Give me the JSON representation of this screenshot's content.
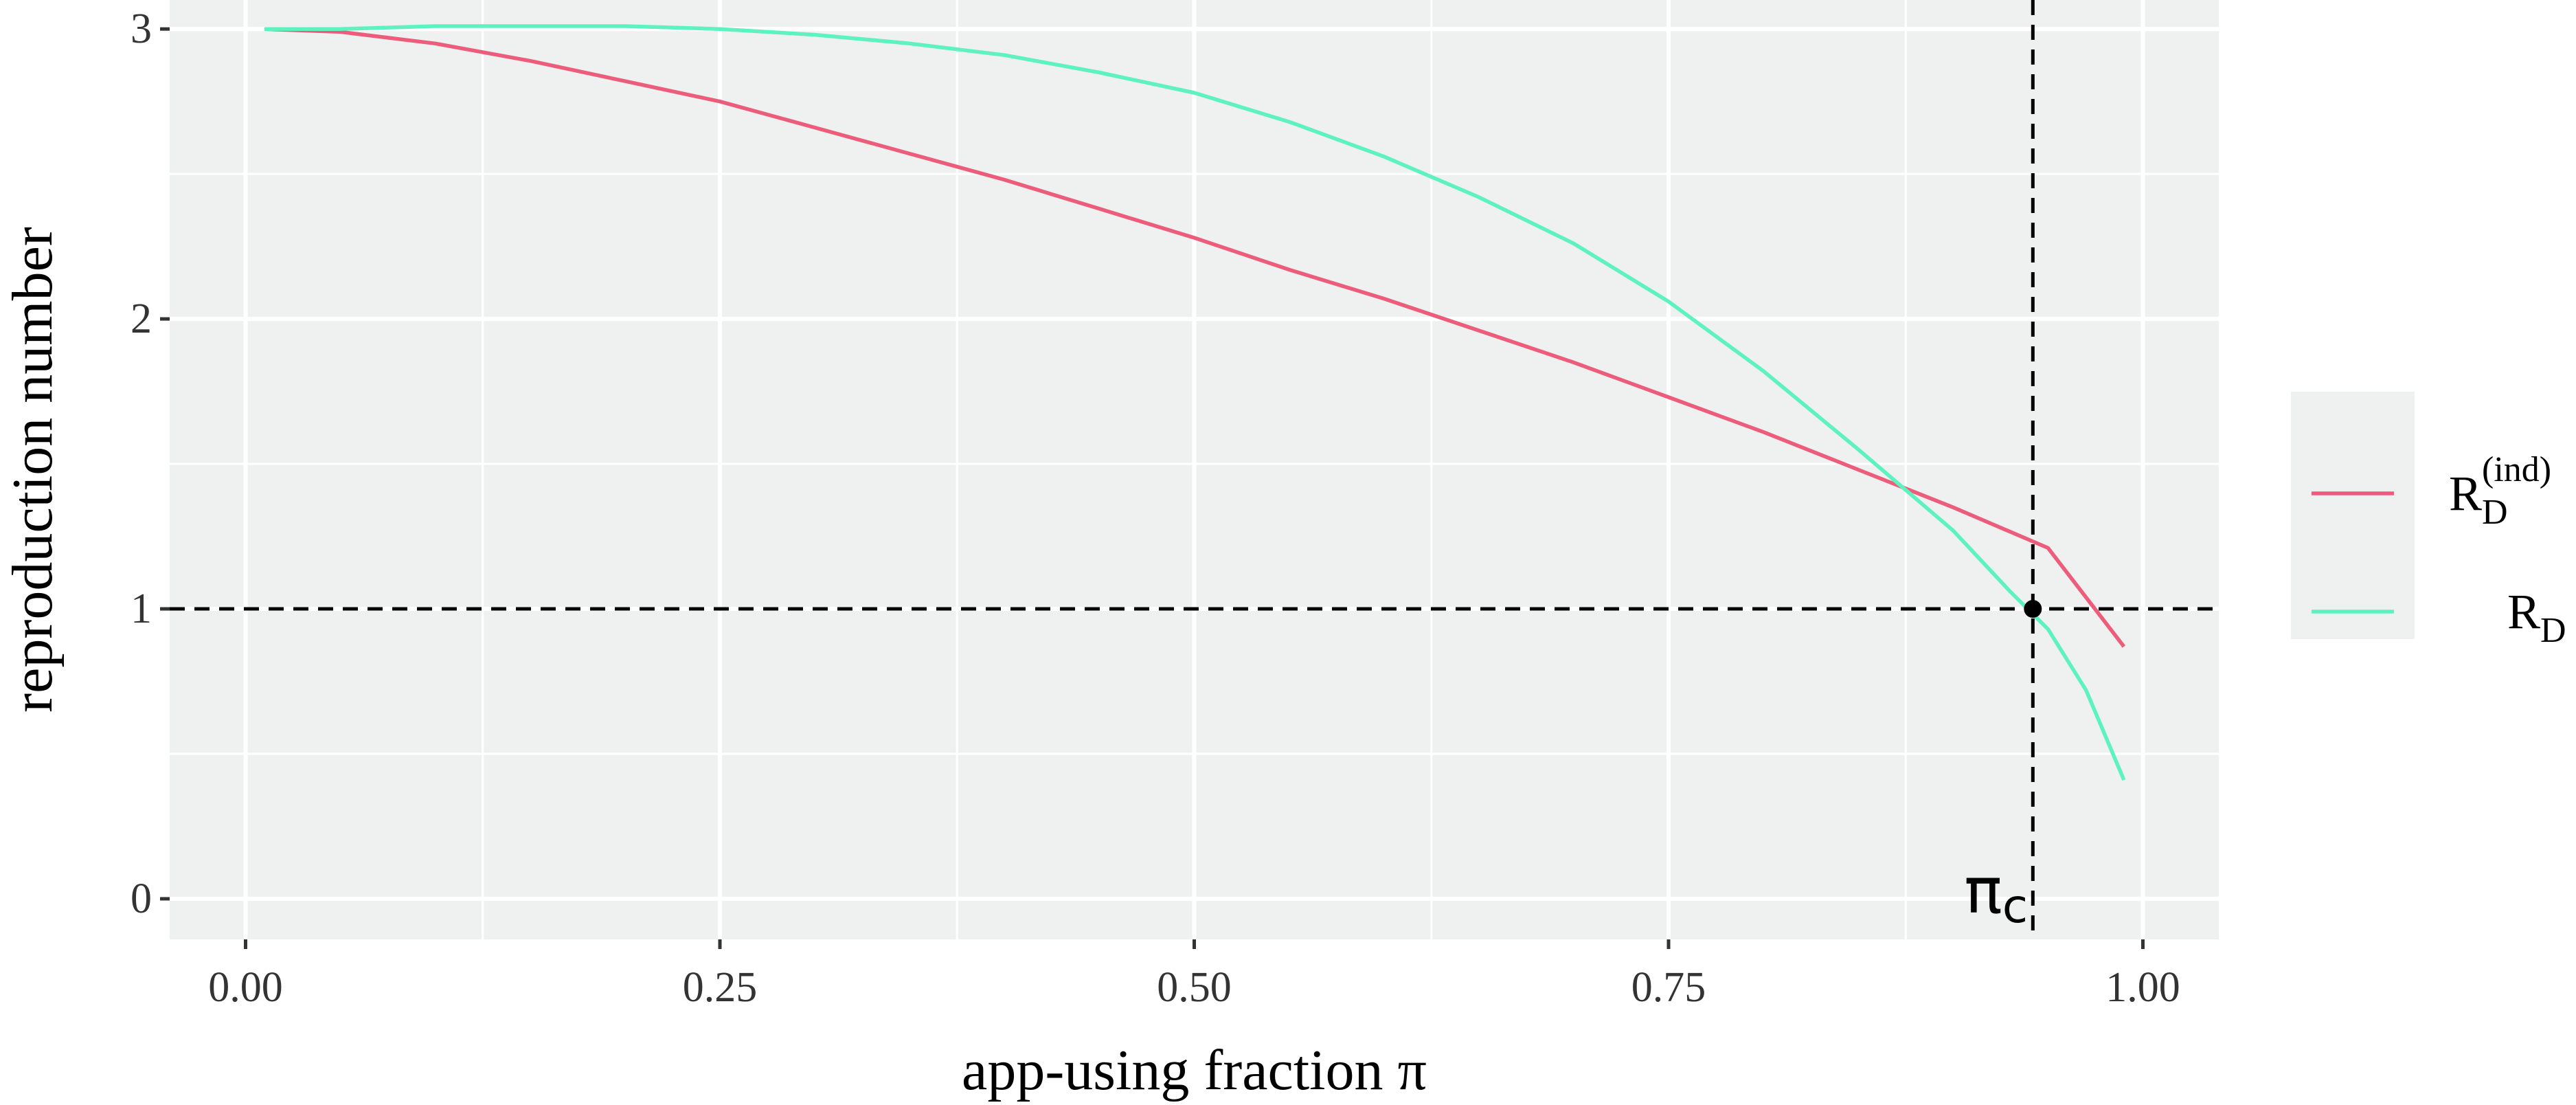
{
  "chart_data": {
    "type": "line",
    "xlabel": "app-using fraction π",
    "ylabel": "reproduction number",
    "xlim": [
      -0.04,
      1.04
    ],
    "ylim": [
      -0.14,
      3.1
    ],
    "x_ticks": [
      {
        "value": 0.0,
        "label": "0.00"
      },
      {
        "value": 0.25,
        "label": "0.25"
      },
      {
        "value": 0.5,
        "label": "0.50"
      },
      {
        "value": 0.75,
        "label": "0.75"
      },
      {
        "value": 1.0,
        "label": "1.00"
      }
    ],
    "y_ticks": [
      {
        "value": 0,
        "label": "0"
      },
      {
        "value": 1,
        "label": "1"
      },
      {
        "value": 2,
        "label": "2"
      },
      {
        "value": 3,
        "label": "3"
      }
    ],
    "grid": true,
    "panel_background": "#eff0f0",
    "legend_position": "right",
    "series": [
      {
        "name_base": "R",
        "name_sub": "D",
        "name_sup": "(ind)",
        "color": "#ec5d7b",
        "x": [
          0.01,
          0.05,
          0.1,
          0.15,
          0.2,
          0.25,
          0.3,
          0.35,
          0.4,
          0.45,
          0.5,
          0.55,
          0.6,
          0.65,
          0.7,
          0.75,
          0.8,
          0.85,
          0.9,
          0.95,
          0.99
        ],
        "y": [
          3.0,
          2.99,
          2.95,
          2.89,
          2.82,
          2.75,
          2.66,
          2.57,
          2.48,
          2.38,
          2.28,
          2.17,
          2.07,
          1.96,
          1.85,
          1.73,
          1.61,
          1.48,
          1.35,
          1.21,
          0.87
        ]
      },
      {
        "name_base": "R",
        "name_sub": "D",
        "name_sup": "",
        "color": "#5df2bf",
        "x": [
          0.01,
          0.05,
          0.1,
          0.15,
          0.2,
          0.25,
          0.3,
          0.35,
          0.4,
          0.45,
          0.5,
          0.55,
          0.6,
          0.65,
          0.7,
          0.75,
          0.8,
          0.85,
          0.9,
          0.93,
          0.95,
          0.97,
          0.99
        ],
        "y": [
          3.0,
          3.0,
          3.01,
          3.01,
          3.01,
          3.0,
          2.98,
          2.95,
          2.91,
          2.85,
          2.78,
          2.68,
          2.56,
          2.42,
          2.26,
          2.06,
          1.82,
          1.55,
          1.27,
          1.06,
          0.93,
          0.72,
          0.41
        ]
      }
    ],
    "reference_lines": {
      "horizontal_y": 1,
      "vertical_x": 0.942,
      "style": "dashed",
      "color": "#000000"
    },
    "annotations": [
      {
        "text_base": "π",
        "text_sub": "c",
        "x": 0.942,
        "position": "bottom-left of vertical line"
      }
    ],
    "intersection_point": {
      "x": 0.942,
      "y": 1
    }
  }
}
